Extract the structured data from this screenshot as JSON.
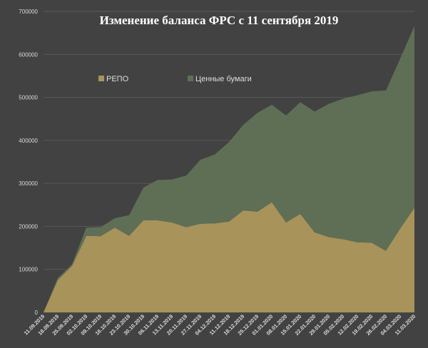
{
  "chart_data": {
    "type": "area",
    "stacked": true,
    "title": "Изменение баланса ФРС с 11 сентября 2019",
    "xlabel": "",
    "ylabel": "",
    "ylim": [
      0,
      700000
    ],
    "yticks": [
      "0",
      "100000",
      "200000",
      "300000",
      "400000",
      "500000",
      "600000",
      "700000"
    ],
    "grid": true,
    "legend_position": "top-left",
    "categories": [
      "11.09.2019",
      "18.09.2019",
      "25.09.2019",
      "02.10.2019",
      "09.10.2019",
      "16.10.2019",
      "23.10.2019",
      "30.10.2019",
      "06.11.2019",
      "13.11.2019",
      "20.11.2019",
      "27.11.2019",
      "04.12.2019",
      "11.12.2019",
      "18.12.2019",
      "25.12.2019",
      "01.01.2020",
      "08.01.2020",
      "15.01.2020",
      "22.01.2020",
      "29.01.2020",
      "05.02.2020",
      "12.02.2020",
      "19.02.2020",
      "26.02.2020",
      "04.03.2020",
      "11.03.2020"
    ],
    "series": [
      {
        "name": "РЕПО",
        "color": "#a8935a",
        "values": [
          0,
          75000,
          108000,
          178000,
          177000,
          197000,
          178000,
          214000,
          214000,
          209000,
          198000,
          206000,
          207000,
          211000,
          237000,
          234000,
          256000,
          209000,
          229000,
          186000,
          175000,
          170000,
          163000,
          162000,
          143000,
          195000,
          243000
        ]
      },
      {
        "name": "Ценные бумаги",
        "color": "#5f6f56",
        "values": [
          0,
          5000,
          4000,
          19000,
          21000,
          22000,
          48000,
          76000,
          94000,
          100000,
          120000,
          149000,
          160000,
          185000,
          199000,
          230000,
          227000,
          249000,
          260000,
          281000,
          310000,
          327000,
          342000,
          352000,
          373000,
          395000,
          423000
        ]
      }
    ]
  }
}
